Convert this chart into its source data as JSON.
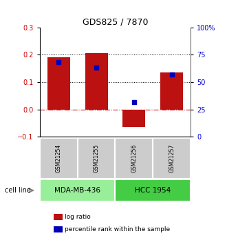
{
  "title": "GDS825 / 7870",
  "samples": [
    "GSM21254",
    "GSM21255",
    "GSM21256",
    "GSM21257"
  ],
  "log_ratios": [
    0.19,
    0.205,
    -0.065,
    0.135
  ],
  "percentile_ranks": [
    0.68,
    0.63,
    0.32,
    0.57
  ],
  "cell_lines": [
    {
      "label": "MDA-MB-436",
      "samples": [
        0,
        1
      ],
      "color": "#99ee99"
    },
    {
      "label": "HCC 1954",
      "samples": [
        2,
        3
      ],
      "color": "#44cc44"
    }
  ],
  "ylim": [
    -0.1,
    0.3
  ],
  "yticks_left": [
    -0.1,
    0.0,
    0.1,
    0.2,
    0.3
  ],
  "yticks_right": [
    0,
    25,
    50,
    75,
    100
  ],
  "bar_width": 0.6,
  "bar_color": "#bb1111",
  "dot_color": "#0000bb",
  "dot_size": 22,
  "hline_y": 0.0,
  "dotted_lines": [
    0.1,
    0.2
  ],
  "bg_color": "#ffffff",
  "legend_items": [
    {
      "label": "log ratio",
      "color": "#bb1111"
    },
    {
      "label": "percentile rank within the sample",
      "color": "#0000bb"
    }
  ],
  "cell_line_label": "cell line",
  "sample_box_color": "#cccccc"
}
